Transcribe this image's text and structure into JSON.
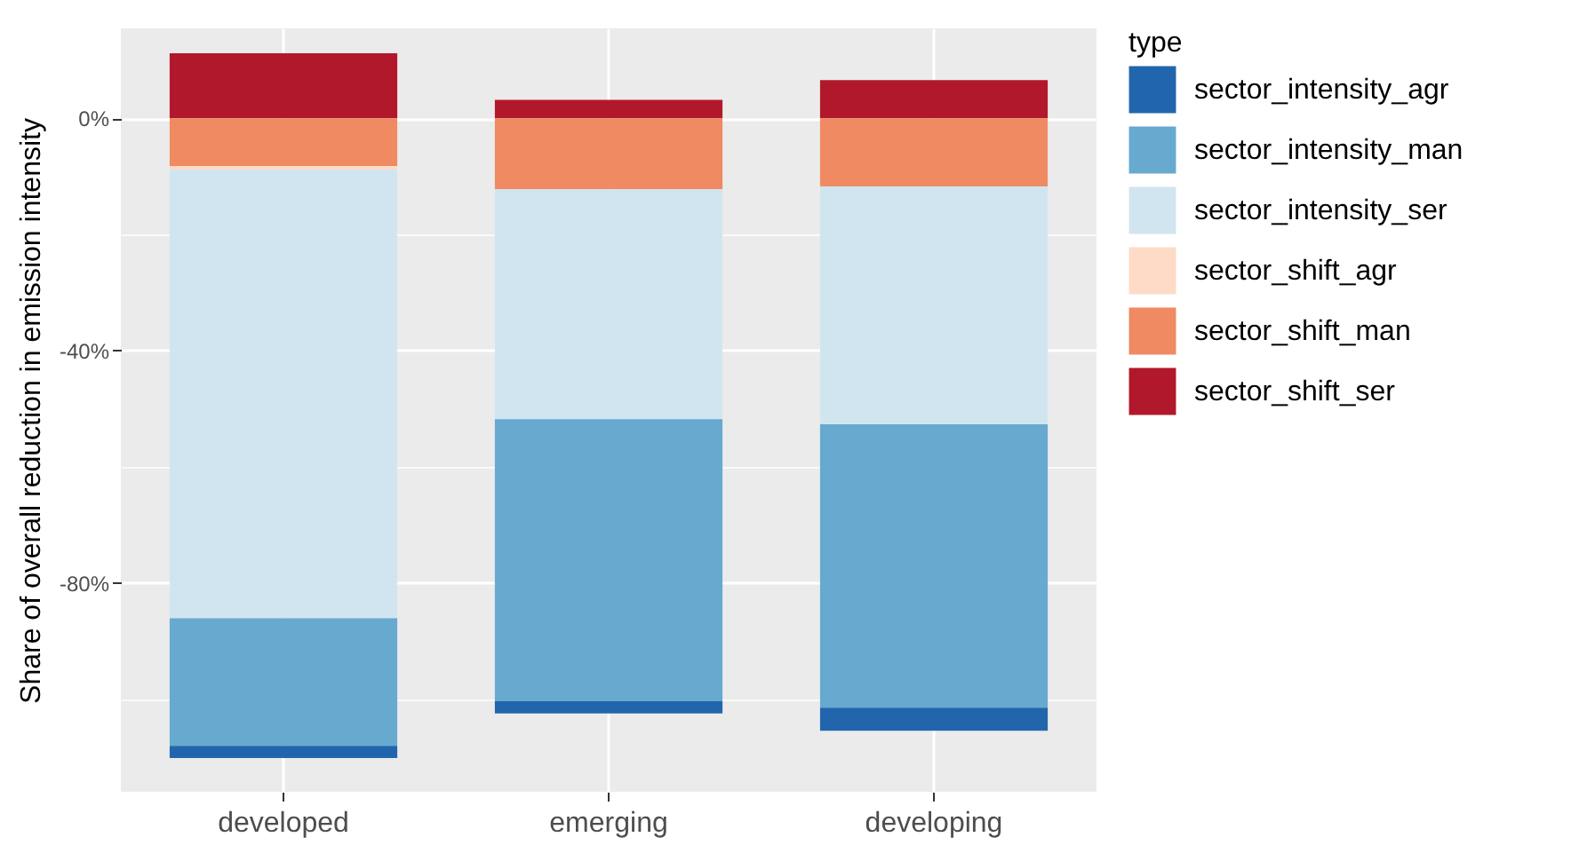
{
  "chart_data": {
    "type": "bar",
    "stacked": true,
    "ylabel": "Share of overall reduction in emission intensity",
    "legend_title": "type",
    "legend": "right",
    "grid": true,
    "categories": [
      "developed",
      "emerging",
      "developing"
    ],
    "series": [
      {
        "name": "sector_shift_ser",
        "color": "#b2182b",
        "values": [
          11.2,
          3.2,
          6.6
        ]
      },
      {
        "name": "sector_shift_man",
        "color": "#ef8a62",
        "values": [
          -8.2,
          -12.2,
          -11.7
        ]
      },
      {
        "name": "sector_shift_agr",
        "color": "#fddbc7",
        "values": [
          -0.6,
          null,
          null
        ]
      },
      {
        "name": "sector_intensity_ser",
        "color": "#d1e5f0",
        "values": [
          -77.3,
          -39.6,
          -41.0
        ]
      },
      {
        "name": "sector_intensity_man",
        "color": "#67a9cf",
        "values": [
          -22.0,
          -48.6,
          -48.8
        ]
      },
      {
        "name": "sector_intensity_agr",
        "color": "#2166ac",
        "values": [
          -2.1,
          -2.1,
          -4.0
        ]
      }
    ],
    "ylim": [
      -116,
      15.5
    ],
    "yticks": [
      {
        "value": -100,
        "label": null
      },
      {
        "value": -80,
        "label": "-80%"
      },
      {
        "value": -60,
        "label": null
      },
      {
        "value": -40,
        "label": "-40%"
      },
      {
        "value": -20,
        "label": null
      },
      {
        "value": 0,
        "label": "0%"
      }
    ]
  }
}
